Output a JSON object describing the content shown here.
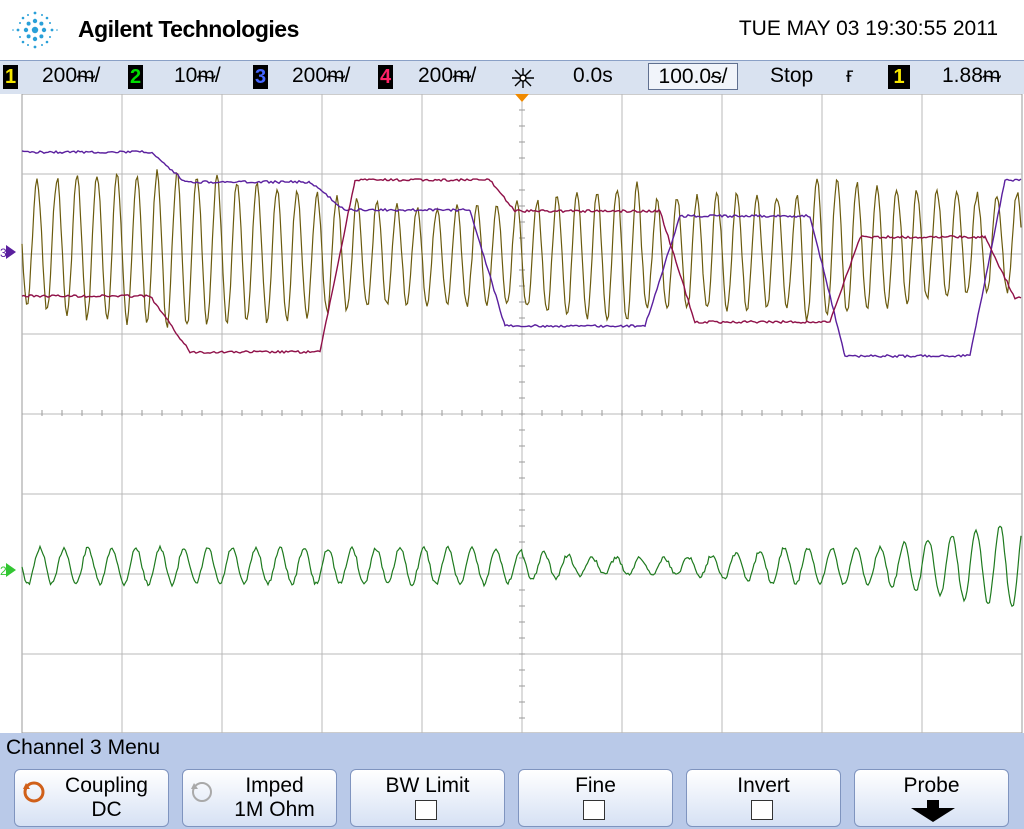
{
  "header": {
    "brand": "Agilent Technologies",
    "datetime": "TUE MAY 03 19:30:55 2011"
  },
  "status_bar": {
    "channels": [
      {
        "num": "1",
        "scale": "200ᵯ/",
        "color": "#f5e600"
      },
      {
        "num": "2",
        "scale": "10ᵯ/",
        "color": "#00dd00"
      },
      {
        "num": "3",
        "scale": "200ᵯ/",
        "color": "#4466ff"
      },
      {
        "num": "4",
        "scale": "200ᵯ/",
        "color": "#ff2266"
      }
    ],
    "delay": "0.0s",
    "timebase": "100.0ᵴ/",
    "run_state": "Stop",
    "trigger_slope": "ғ",
    "trigger_source": "1",
    "trigger_level": "1.88ᵯ"
  },
  "screen": {
    "ground_markers": {
      "ch2": "2",
      "ch3": "3"
    },
    "trace_colors": {
      "ch1": "#6b5b0e",
      "ch2": "#1e7a1e",
      "ch3": "#5a1f9e",
      "ch4": "#8f1048"
    }
  },
  "menu": {
    "title": "Channel 3  Menu",
    "softkeys": [
      {
        "line1": "Coupling",
        "line2": "DC",
        "icon": "rotary-knob-icon"
      },
      {
        "line1": "Imped",
        "line2": "1M Ohm",
        "icon": "rotary-knob-icon-disabled"
      },
      {
        "line1": "BW Limit",
        "line2": "",
        "icon": "checkbox-icon"
      },
      {
        "line1": "Fine",
        "line2": "",
        "icon": "checkbox-icon"
      },
      {
        "line1": "Invert",
        "line2": "",
        "icon": "checkbox-icon"
      },
      {
        "line1": "Probe",
        "line2": "",
        "icon": "down-arrow-icon"
      }
    ]
  }
}
